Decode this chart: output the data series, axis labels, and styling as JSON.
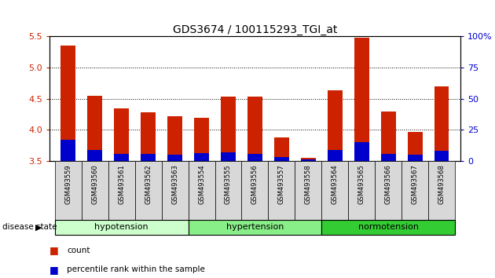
{
  "title": "GDS3674 / 100115293_TGI_at",
  "samples": [
    "GSM493559",
    "GSM493560",
    "GSM493561",
    "GSM493562",
    "GSM493563",
    "GSM493554",
    "GSM493555",
    "GSM493556",
    "GSM493557",
    "GSM493558",
    "GSM493564",
    "GSM493565",
    "GSM493566",
    "GSM493567",
    "GSM493568"
  ],
  "count_values": [
    5.35,
    4.55,
    4.35,
    4.28,
    4.22,
    4.2,
    4.53,
    4.53,
    3.88,
    3.56,
    4.63,
    5.48,
    4.3,
    3.97,
    4.7
  ],
  "percentile_values": [
    3.84,
    3.68,
    3.62,
    3.62,
    3.61,
    3.63,
    3.64,
    3.62,
    3.57,
    3.53,
    3.68,
    3.81,
    3.62,
    3.6,
    3.67
  ],
  "ymin": 3.5,
  "ymax": 5.5,
  "yticks_left": [
    3.5,
    4.0,
    4.5,
    5.0,
    5.5
  ],
  "yticks_right_vals": [
    0,
    25,
    50,
    75,
    100
  ],
  "groups": [
    {
      "label": "hypotension",
      "start": 0,
      "end": 5,
      "color": "#ccffcc"
    },
    {
      "label": "hypertension",
      "start": 5,
      "end": 10,
      "color": "#88ee88"
    },
    {
      "label": "normotension",
      "start": 10,
      "end": 15,
      "color": "#33cc33"
    }
  ],
  "bar_color": "#cc2200",
  "percentile_color": "#0000cc",
  "bar_width": 0.55,
  "base": 3.5,
  "left_tick_color": "#cc2200",
  "right_tick_color": "#0000cc"
}
